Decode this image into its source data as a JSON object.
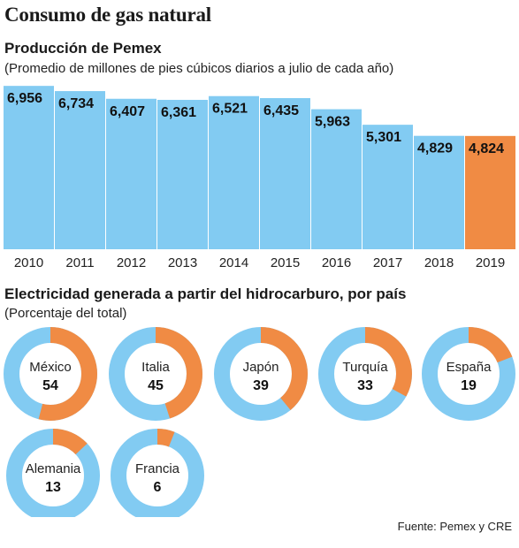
{
  "title": "Consumo de gas natural",
  "colors": {
    "base": "#82cbf2",
    "highlight": "#f08b44",
    "ring_light": "#82cbf2",
    "ring_accent": "#f08b44"
  },
  "chart_data": [
    {
      "type": "bar",
      "title": "Producción de Pemex",
      "subtitle": "(Promedio de millones de pies cúbicos diarios a julio de cada año)",
      "categories": [
        "2010",
        "2011",
        "2012",
        "2013",
        "2014",
        "2015",
        "2016",
        "2017",
        "2018",
        "2019"
      ],
      "values": [
        6956,
        6734,
        6407,
        6361,
        6521,
        6435,
        5963,
        5301,
        4829,
        4824
      ],
      "value_labels": [
        "6,956",
        "6,734",
        "6,407",
        "6,361",
        "6,521",
        "6,435",
        "5,963",
        "5,301",
        "4,829",
        "4,824"
      ],
      "highlight_index": 9,
      "ylim": [
        0,
        7000
      ]
    },
    {
      "type": "pie",
      "title": "Electricidad generada a partir del hidrocarburo, por país",
      "subtitle": "(Porcentaje del total)",
      "style": "donut",
      "categories": [
        "México",
        "Italia",
        "Japón",
        "Turquía",
        "España",
        "Alemania",
        "Francia"
      ],
      "values": [
        54,
        45,
        39,
        33,
        19,
        13,
        6
      ]
    }
  ],
  "source": "Fuente: Pemex y CRE"
}
